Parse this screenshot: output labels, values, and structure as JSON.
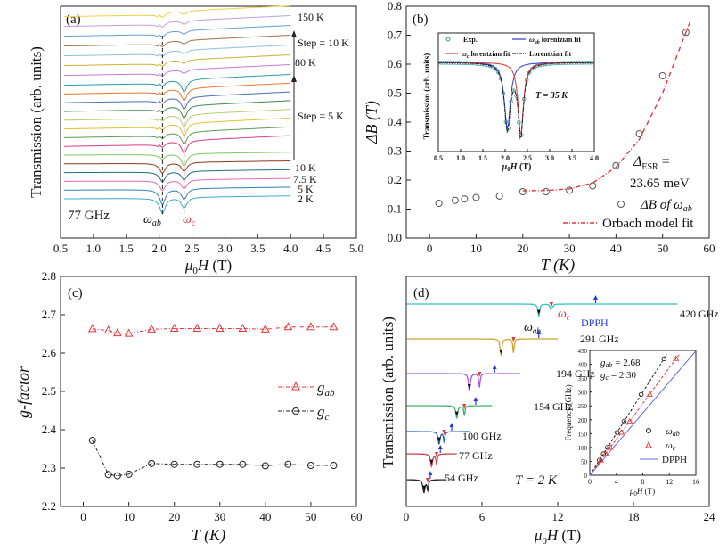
{
  "figure": {
    "panel_labels": [
      "(a)",
      "(b)",
      "(c)",
      "(d)"
    ]
  },
  "colors": {
    "red": "#e8343a",
    "blue": "#2a3bd6",
    "black": "#222222",
    "cyan": "#2bc4c8",
    "gold": "#c9a52a",
    "purple": "#a45ad8",
    "green": "#3bb06a",
    "navy": "#1f62c6",
    "wine": "#d23a4a",
    "grey": "#555555"
  },
  "chart_data": [
    {
      "type": "line",
      "panel": "(a)",
      "xlabel_parts": [
        "μ",
        "0",
        "H",
        " (T)"
      ],
      "ylabel": "Transmission (arb. units)",
      "xlim": [
        0.5,
        5.0
      ],
      "xticks": [
        "0.5",
        "1.0",
        "1.5",
        "2.0",
        "2.5",
        "3.0",
        "3.5",
        "4.0",
        "4.5",
        "5.0"
      ],
      "x_range_of_data": [
        0.55,
        4.0
      ],
      "dip_positions_T": [
        2.05,
        2.38
      ],
      "temperatures": [
        "150 K",
        "80 K",
        "10 K",
        "7.5 K",
        "5 K",
        "2 K"
      ],
      "step_labels": [
        "Step = 10 K",
        "Step = 5 K"
      ],
      "frequency_label": "77 GHz",
      "dip_labels": [
        {
          "main": "ω",
          "sub": "ab"
        },
        {
          "main": "ω",
          "sub": "c"
        }
      ],
      "n_traces": 21
    },
    {
      "type": "scatter",
      "panel": "(b)",
      "xlabel": "T (K)",
      "ylabel": "ΔB (T)",
      "xlim": [
        -5,
        60
      ],
      "ylim": [
        0,
        0.8
      ],
      "xticks": [
        "0",
        "10",
        "20",
        "30",
        "40",
        "50",
        "60"
      ],
      "yticks": [
        "0.0",
        "0.1",
        "0.2",
        "0.3",
        "0.4",
        "0.5",
        "0.6",
        "0.7",
        "0.8"
      ],
      "series": [
        {
          "name": "ΔB of ωab",
          "x": [
            2,
            5.5,
            7.5,
            10,
            15,
            20,
            25,
            30,
            35,
            40,
            45,
            50,
            55
          ],
          "y": [
            0.12,
            0.13,
            0.135,
            0.14,
            0.145,
            0.16,
            0.16,
            0.165,
            0.18,
            0.25,
            0.36,
            0.56,
            0.71
          ]
        },
        {
          "name": "Orbach model fit",
          "x": [
            20,
            25,
            30,
            35,
            40,
            45,
            50,
            55,
            56
          ],
          "y": [
            0.163,
            0.164,
            0.17,
            0.19,
            0.245,
            0.34,
            0.5,
            0.71,
            0.75
          ]
        }
      ],
      "annotation": {
        "label": "Δ",
        "sub": "ESR",
        "eq": " =",
        "value": "23.65 meV"
      },
      "legend": [
        {
          "main": "ΔB of ω",
          "sub": "ab"
        },
        {
          "main": "Orbach model fit",
          "sub": ""
        }
      ],
      "inset": {
        "xlabel_parts": [
          "μ",
          "0",
          "H",
          " (T)"
        ],
        "ylabel": "Transmission (arb. units)",
        "xlim": [
          0.5,
          4.0
        ],
        "xticks": [
          "0.5",
          "1.0",
          "1.5",
          "2.0",
          "2.5",
          "3.0",
          "3.5",
          "4.0"
        ],
        "legend": [
          {
            "main": "Exp.",
            "sub": ""
          },
          {
            "main": "ω",
            "sub": "ab",
            "tail": " lorentzian fit"
          },
          {
            "main": "ω",
            "sub": "c",
            "tail": " lorentzian fit"
          },
          {
            "main": "Lorentzian fit",
            "sub": ""
          }
        ],
        "temp_label": "T = 35 K",
        "dips_T": [
          2.05,
          2.35
        ]
      }
    },
    {
      "type": "line",
      "panel": "(c)",
      "xlabel": "T (K)",
      "ylabel": "g-factor",
      "xlim": [
        -5,
        60
      ],
      "ylim": [
        2.2,
        2.8
      ],
      "xticks": [
        "0",
        "10",
        "20",
        "30",
        "40",
        "50",
        "60"
      ],
      "yticks": [
        "2.2",
        "2.3",
        "2.4",
        "2.5",
        "2.6",
        "2.7",
        "2.8"
      ],
      "series": [
        {
          "name": "gab",
          "x": [
            2,
            5.5,
            7.5,
            10,
            15,
            20,
            25,
            30,
            35,
            40,
            45,
            50,
            55
          ],
          "y": [
            2.663,
            2.659,
            2.652,
            2.651,
            2.662,
            2.664,
            2.664,
            2.664,
            2.664,
            2.662,
            2.668,
            2.668,
            2.668
          ]
        },
        {
          "name": "gc",
          "x": [
            2,
            5.5,
            7.5,
            10,
            15,
            20,
            25,
            30,
            35,
            40,
            45,
            50,
            55
          ],
          "y": [
            2.372,
            2.283,
            2.28,
            2.284,
            2.312,
            2.31,
            2.31,
            2.31,
            2.31,
            2.306,
            2.31,
            2.307,
            2.307
          ]
        }
      ],
      "legend": [
        {
          "main": "g",
          "sub": "ab"
        },
        {
          "main": "g",
          "sub": "c"
        }
      ]
    },
    {
      "type": "line",
      "panel": "(d)",
      "xlabel_parts": [
        "μ",
        "0",
        "H",
        " (T)"
      ],
      "ylabel": "Transmission (arb. units)",
      "xlim": [
        0,
        24
      ],
      "xticks": [
        "0",
        "6",
        "12",
        "18",
        "24"
      ],
      "traces": [
        {
          "label": "420 GHz",
          "dips_T": [
            10.5,
            11.5
          ],
          "dpph_T": 15.0
        },
        {
          "label": "291 GHz",
          "dips_T": [
            7.5,
            8.5
          ],
          "dpph_T": 10.5
        },
        {
          "label": "194 GHz",
          "dips_T": [
            5.0,
            5.8
          ],
          "dpph_T": 7.0
        },
        {
          "label": "154 GHz",
          "dips_T": [
            4.0,
            4.6
          ],
          "dpph_T": 5.5
        },
        {
          "label": "100 GHz",
          "dips_T": [
            2.6,
            3.0
          ],
          "dpph_T": 3.6
        },
        {
          "label": "77 GHz",
          "dips_T": [
            2.0,
            2.4
          ],
          "dpph_T": 2.7
        },
        {
          "label": "54 GHz",
          "dips_T": [
            1.4,
            1.7
          ],
          "dpph_T": 1.9
        }
      ],
      "labels": {
        "omega_ab": {
          "main": "ω",
          "sub": "ab"
        },
        "omega_c": {
          "main": "ω",
          "sub": "c"
        },
        "dpph": "DPPH",
        "temp": "T = 2 K"
      },
      "inset": {
        "xlabel_parts": [
          "μ",
          "0",
          "H",
          " (T)"
        ],
        "ylabel": "Frequency (GHz)",
        "xlim": [
          0,
          16
        ],
        "ylim": [
          0,
          450
        ],
        "xticks": [
          "0",
          "4",
          "8",
          "12",
          "16"
        ],
        "yticks": [
          "0",
          "50",
          "100",
          "150",
          "200",
          "250",
          "300",
          "350",
          "400",
          "450"
        ],
        "g_annotations": [
          {
            "main": "g",
            "sub": "ab",
            "value": " = 2.68"
          },
          {
            "main": "g",
            "sub": "c",
            "value": " = 2.30"
          }
        ],
        "legend": [
          {
            "main": "ω",
            "sub": "ab"
          },
          {
            "main": "ω",
            "sub": "c"
          },
          {
            "main": "DPPH",
            "sub": ""
          }
        ],
        "series": [
          {
            "name": "ωab",
            "x": [
              1.45,
              2.05,
              2.67,
              4.1,
              5.17,
              7.76,
              11.2
            ],
            "y": [
              54,
              77,
              100,
              154,
              194,
              291,
              420
            ]
          },
          {
            "name": "ωc",
            "x": [
              1.68,
              2.39,
              3.1,
              4.78,
              6.03,
              9.04,
              13.0
            ],
            "y": [
              54,
              77,
              100,
              154,
              194,
              291,
              420
            ]
          }
        ]
      }
    }
  ]
}
